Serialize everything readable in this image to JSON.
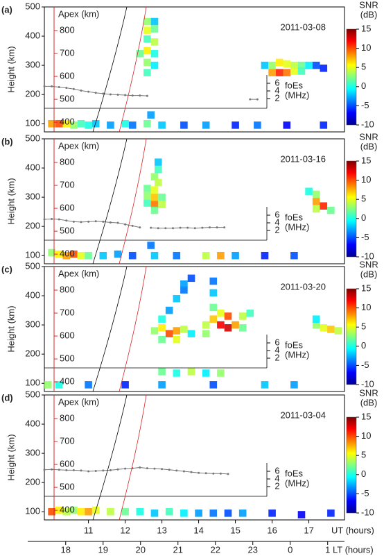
{
  "panel_common": {
    "ylabel": "Height (km)",
    "ylim": [
      72,
      500
    ],
    "yticks": [
      100,
      200,
      300,
      400,
      500
    ],
    "xlim": [
      9.8,
      17.97
    ],
    "apex": {
      "label": "Apex (km)",
      "lim": [
        358,
        903
      ],
      "ticks": [
        400,
        500,
        600,
        700,
        800
      ],
      "color": "#d62728"
    },
    "foes": {
      "label": "foEs",
      "unit": "(MHz)",
      "lim": [
        0,
        7.5
      ],
      "ticks": [
        2,
        4,
        6
      ],
      "color": "#777777"
    },
    "colorbar": {
      "title": "SNR",
      "unit": "(dB)",
      "lim": [
        -10,
        15
      ],
      "ticks": [
        -10,
        -5,
        0,
        5,
        10,
        15
      ],
      "colors": [
        "#00008f",
        "#0000ff",
        "#0080ff",
        "#00ffff",
        "#80ff80",
        "#ffff00",
        "#ff8000",
        "#ff0000",
        "#800000"
      ]
    }
  },
  "chart_data": [
    {
      "type": "heatmap",
      "label": "(a)",
      "date": "2011-03-08",
      "echoes": {
        "ut": [
          12.6,
          12.8,
          12.6,
          12.8,
          12.6,
          12.8,
          12.6,
          12.4,
          12.8,
          12.6,
          12.8,
          12.6,
          12.7,
          15.8,
          16.0,
          16.2,
          16.4,
          16.6,
          16.8,
          17.0,
          16.0,
          16.2,
          16.4,
          16.6,
          16.8,
          17.2,
          17.4,
          10.0,
          10.2,
          10.4,
          10.6,
          10.8,
          11.0,
          11.2,
          11.6,
          12.0,
          12.2,
          12.6,
          13.0,
          13.6,
          14.2,
          15.0,
          15.6,
          16.4,
          17.4
        ],
        "height": [
          450,
          450,
          420,
          425,
          390,
          380,
          350,
          340,
          340,
          310,
          300,
          275,
          130,
          300,
          300,
          310,
          305,
          300,
          300,
          300,
          275,
          275,
          275,
          280,
          280,
          300,
          290,
          100,
          100,
          100,
          95,
          100,
          95,
          100,
          95,
          100,
          95,
          100,
          95,
          95,
          95,
          95,
          95,
          95,
          95
        ],
        "snr": [
          3,
          -2,
          5,
          2,
          1,
          4,
          6,
          2,
          0,
          3,
          -1,
          1,
          -3,
          -2,
          3,
          6,
          5,
          4,
          2,
          -1,
          8,
          11,
          9,
          5,
          1,
          -5,
          -6,
          8,
          10,
          6,
          3,
          1,
          0,
          -2,
          -3,
          0,
          -4,
          2,
          -2,
          -5,
          -3,
          -6,
          -4,
          -7,
          -6
        ]
      },
      "foes": {
        "ut": [
          9.8,
          10.0,
          10.2,
          10.4,
          10.6,
          10.8,
          11.0,
          11.2,
          11.4,
          11.6,
          11.8,
          12.0,
          12.2,
          12.4,
          12.6,
          14.0,
          15.4,
          15.6
        ],
        "values": [
          5.2,
          5.2,
          5.0,
          4.8,
          4.5,
          4.1,
          3.8,
          3.5,
          3.3,
          3.1,
          3.0,
          2.9,
          2.8,
          2.8,
          2.7,
          null,
          1.8,
          1.8
        ]
      }
    },
    {
      "type": "heatmap",
      "label": "(b)",
      "date": "2011-03-16",
      "echoes": {
        "ut": [
          12.9,
          12.9,
          12.8,
          12.9,
          12.6,
          12.8,
          12.6,
          12.8,
          13.0,
          12.6,
          12.8,
          13.0,
          12.8,
          12.7,
          17.0,
          17.2,
          17.2,
          17.4,
          17.2,
          17.6,
          10.0,
          10.2,
          10.4,
          10.6,
          10.8,
          11.0,
          11.4,
          11.8,
          12.2,
          12.8,
          13.4,
          14.2,
          14.6,
          15.0,
          15.8,
          16.6
        ],
        "height": [
          420,
          395,
          370,
          350,
          330,
          325,
          305,
          300,
          300,
          280,
          275,
          275,
          255,
          135,
          320,
          310,
          285,
          270,
          260,
          255,
          110,
          105,
          100,
          105,
          100,
          100,
          100,
          105,
          100,
          100,
          100,
          100,
          100,
          100,
          100,
          100
        ],
        "snr": [
          -2,
          1,
          3,
          4,
          2,
          5,
          3,
          7,
          2,
          1,
          9,
          4,
          2,
          -4,
          0,
          3,
          8,
          11,
          4,
          2,
          3,
          6,
          8,
          10,
          5,
          2,
          -2,
          -3,
          -5,
          -2,
          -4,
          4,
          8,
          -3,
          -6,
          -5
        ]
      },
      "foes": {
        "ut": [
          9.8,
          10.0,
          10.2,
          10.4,
          10.6,
          10.8,
          11.0,
          11.2,
          11.4,
          11.6,
          11.8,
          12.0,
          12.2,
          12.4,
          12.55,
          12.7,
          12.9,
          13.1,
          13.3,
          13.5,
          13.7,
          13.9,
          14.1,
          14.3,
          14.5,
          14.7
        ],
        "values": [
          4.9,
          5.0,
          4.9,
          4.6,
          4.3,
          4.2,
          4.3,
          4.4,
          4.3,
          4.1,
          4.0,
          3.6,
          3.2,
          2.8,
          null,
          2.7,
          2.6,
          2.6,
          2.6,
          2.7,
          2.7,
          2.6,
          2.7,
          2.8,
          2.8,
          2.8
        ]
      }
    },
    {
      "type": "heatmap",
      "label": "(c)",
      "date": "2011-03-20",
      "echoes": {
        "ut": [
          12.8,
          13.0,
          13.2,
          13.4,
          13.6,
          13.8,
          13.0,
          13.2,
          13.4,
          13.6,
          13.0,
          13.4,
          14.2,
          14.4,
          14.6,
          14.8,
          15.0,
          14.4,
          14.6,
          14.4,
          14.4,
          14.2,
          14.8,
          15.2,
          15.4,
          15.2,
          13.6,
          13.8,
          17.2,
          17.4,
          17.6,
          17.8,
          17.2,
          13.0,
          13.4,
          13.8,
          14.2,
          14.6,
          9.9,
          10.2,
          11.0,
          12.0,
          13.0,
          14.4,
          15.8,
          16.6
        ],
        "height": [
          280,
          290,
          270,
          280,
          285,
          270,
          320,
          350,
          390,
          420,
          250,
          250,
          300,
          320,
          300,
          290,
          300,
          360,
          340,
          410,
          450,
          270,
          330,
          330,
          340,
          290,
          440,
          460,
          300,
          290,
          285,
          280,
          320,
          140,
          135,
          140,
          135,
          135,
          95,
          95,
          95,
          95,
          95,
          95,
          95,
          95
        ],
        "snr": [
          3,
          6,
          10,
          8,
          4,
          -1,
          0,
          -3,
          -2,
          -4,
          2,
          5,
          4,
          7,
          12,
          13,
          8,
          2,
          5,
          -2,
          -4,
          3,
          10,
          4,
          1,
          2,
          -3,
          -5,
          3,
          5,
          7,
          4,
          -1,
          2,
          0,
          4,
          -1,
          3,
          3,
          0,
          -4,
          -6,
          -3,
          -5,
          -2,
          -3
        ]
      }
    },
    {
      "type": "heatmap",
      "label": "(d)",
      "date": "2011-03-04",
      "echoes": {
        "ut": [
          10.0,
          10.2,
          10.4,
          10.6,
          10.8,
          11.0,
          11.2,
          11.6,
          12.0,
          12.4,
          12.8,
          13.2,
          13.6,
          14.0,
          14.4,
          14.8,
          15.2,
          16.0,
          16.8,
          17.6
        ],
        "height": [
          100,
          105,
          100,
          105,
          100,
          100,
          105,
          100,
          100,
          100,
          95,
          100,
          95,
          95,
          95,
          95,
          95,
          95,
          90,
          95
        ],
        "snr": [
          10,
          6,
          4,
          3,
          6,
          8,
          5,
          4,
          2,
          0,
          -2,
          1,
          -1,
          -3,
          -4,
          -5,
          -3,
          -6,
          -7,
          -6
        ]
      },
      "foes": {
        "ut": [
          9.8,
          10.0,
          10.2,
          10.4,
          10.6,
          10.8,
          11.0,
          11.2,
          11.4,
          11.6,
          11.8,
          12.0,
          12.2,
          12.4,
          12.6,
          12.8,
          13.0,
          13.2,
          13.4,
          13.6,
          13.8,
          14.0,
          14.2,
          14.4,
          14.6,
          14.8
        ],
        "values": [
          6.4,
          6.5,
          6.4,
          6.3,
          6.3,
          6.2,
          6.0,
          6.1,
          6.2,
          6.3,
          6.5,
          6.7,
          6.8,
          7.0,
          6.8,
          6.7,
          6.6,
          6.4,
          6.2,
          6.0,
          5.8,
          5.6,
          5.5,
          5.4,
          5.4,
          5.3
        ]
      }
    }
  ],
  "x_axes": {
    "ut": {
      "label": "UT (hours)",
      "lim": [
        9.8,
        17.97
      ],
      "ticks": [
        11,
        12,
        13,
        14,
        15,
        16,
        17
      ]
    },
    "lt": {
      "label": "LT (hours)",
      "lim": [
        17.43,
        25.45
      ],
      "ticks": [
        18,
        19,
        20,
        21,
        22,
        23,
        {
          "value": 24,
          "label": "0"
        },
        {
          "value": 25,
          "label": "1"
        }
      ]
    }
  }
}
